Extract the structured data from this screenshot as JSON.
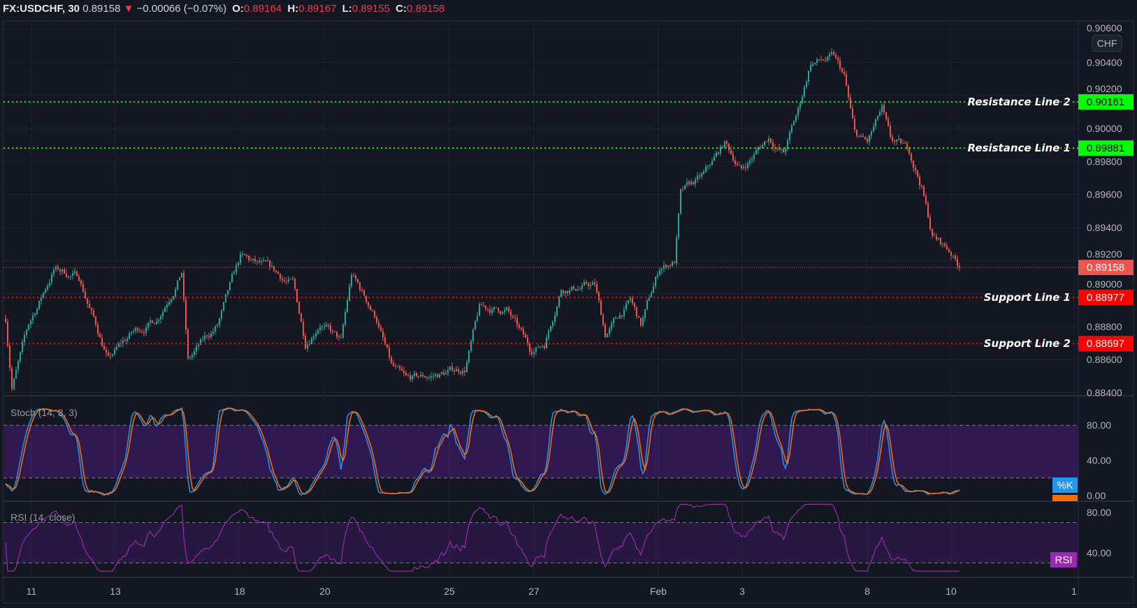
{
  "header": {
    "symbol": "FX:USDCHF, 30",
    "last": "0.89158",
    "change": "−0.00066 (−0.07%)",
    "o_label": "O:",
    "o": "0.89164",
    "h_label": "H:",
    "h": "0.89167",
    "l_label": "L:",
    "l": "0.89155",
    "c_label": "C:",
    "c": "0.89158",
    "direction_icon": "triangle-down"
  },
  "currency_button": "CHF",
  "colors": {
    "up": "#26a69a",
    "down": "#ef5350",
    "resistance": "#00ff00",
    "support": "#ff0000",
    "stoch_k": "#2196f3",
    "stoch_d": "#ff6d00",
    "rsi": "#9c27b0",
    "last_price": "#ef5350"
  },
  "chart_data": [
    {
      "type": "candlestick",
      "title": "FX:USDCHF, 30",
      "ylim": [
        0.884,
        0.906
      ],
      "y_ticks": [
        "0.90600",
        "0.90400",
        "0.90200",
        "0.90000",
        "0.89800",
        "0.89600",
        "0.89400",
        "0.89200",
        "0.89000",
        "0.88800",
        "0.88600",
        "0.88400"
      ],
      "x_ticks": [
        "11",
        "13",
        "18",
        "20",
        "25",
        "27",
        "Feb",
        "3",
        "8",
        "10",
        "1"
      ],
      "close_path_by_bar": [
        [
          0,
          0.8885
        ],
        [
          3,
          0.8845
        ],
        [
          11,
          0.888
        ],
        [
          23,
          0.8915
        ],
        [
          35,
          0.891
        ],
        [
          49,
          0.886
        ],
        [
          60,
          0.8875
        ],
        [
          72,
          0.8885
        ],
        [
          84,
          0.8915
        ],
        [
          87,
          0.886
        ],
        [
          101,
          0.888
        ],
        [
          112,
          0.892
        ],
        [
          122,
          0.8915
        ],
        [
          137,
          0.8905
        ],
        [
          143,
          0.887
        ],
        [
          150,
          0.8885
        ],
        [
          160,
          0.887
        ],
        [
          165,
          0.891
        ],
        [
          177,
          0.8885
        ],
        [
          184,
          0.8855
        ],
        [
          191,
          0.8845
        ],
        [
          205,
          0.885
        ],
        [
          219,
          0.8855
        ],
        [
          226,
          0.889
        ],
        [
          239,
          0.889
        ],
        [
          250,
          0.8865
        ],
        [
          257,
          0.887
        ],
        [
          265,
          0.8905
        ],
        [
          281,
          0.8905
        ],
        [
          286,
          0.8875
        ],
        [
          298,
          0.8895
        ],
        [
          303,
          0.888
        ],
        [
          312,
          0.8915
        ],
        [
          319,
          0.892
        ],
        [
          322,
          0.896
        ],
        [
          333,
          0.897
        ],
        [
          343,
          0.899
        ],
        [
          351,
          0.8975
        ],
        [
          364,
          0.8995
        ],
        [
          371,
          0.8985
        ],
        [
          378,
          0.901
        ],
        [
          384,
          0.904
        ],
        [
          395,
          0.9042
        ],
        [
          400,
          0.903
        ],
        [
          405,
          0.8995
        ],
        [
          411,
          0.899
        ],
        [
          418,
          0.901
        ],
        [
          422,
          0.899
        ],
        [
          431,
          0.8985
        ],
        [
          437,
          0.8965
        ],
        [
          442,
          0.8935
        ],
        [
          451,
          0.8925
        ],
        [
          455,
          0.89158
        ]
      ],
      "last_price": "0.89158",
      "horizontal_lines": [
        {
          "name": "Resistance Line 2",
          "value": "0.90161",
          "kind": "resistance"
        },
        {
          "name": "Resistance Line 1",
          "value": "0.89881",
          "kind": "resistance"
        },
        {
          "name": "Support Line 1",
          "value": "0.88977",
          "kind": "support"
        },
        {
          "name": "Support Line 2",
          "value": "0.88697",
          "kind": "support"
        }
      ]
    },
    {
      "type": "line",
      "title": "Stoch (14, 3, 3)",
      "ylim": [
        0,
        100
      ],
      "y_ticks": [
        "80.00",
        "40.00",
        "0.00"
      ],
      "bands": [
        20,
        80
      ],
      "series": [
        {
          "name": "%K"
        },
        {
          "name": "%D"
        }
      ]
    },
    {
      "type": "line",
      "title": "RSI (14, close)",
      "ylim": [
        20,
        90
      ],
      "y_ticks": [
        "80.00",
        "40.00"
      ],
      "bands": [
        30,
        70
      ],
      "series": [
        {
          "name": "RSI"
        }
      ]
    }
  ]
}
